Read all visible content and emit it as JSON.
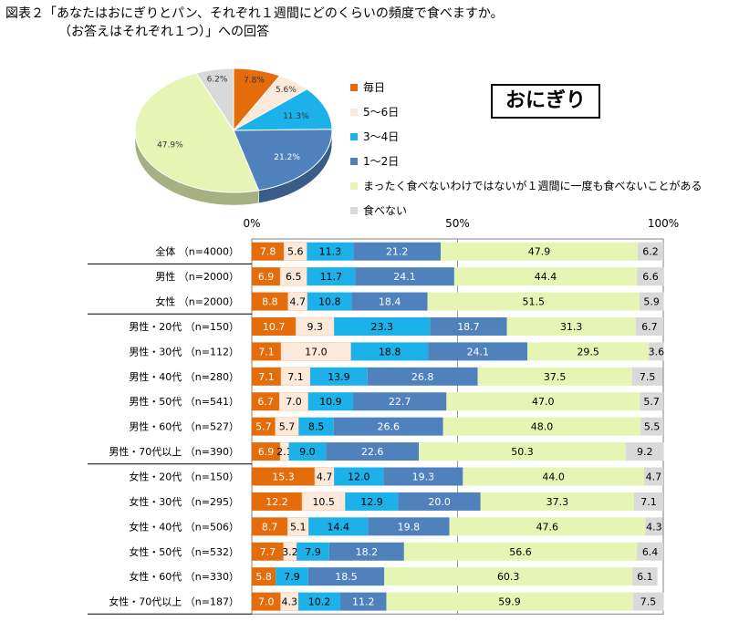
{
  "figure": {
    "title_line1": "図表２「あなたはおにぎりとパン、それぞれ１週間にどのくらいの頻度で食べますか。",
    "title_line2": "（お答えはそれぞれ１つ）」への回答",
    "badge": "おにぎり"
  },
  "colors": {
    "毎日": "#E46C0A",
    "5～6日": "#FDE9D9",
    "3～4日": "#1CB1E8",
    "1～2日": "#4F81BD",
    "まったく食べないわけではないが１週間に一度も食べないことがある": "#E6F5B4",
    "食べない": "#D9D9D9"
  },
  "chart_data": [
    {
      "type": "pie",
      "title": "",
      "labels": [
        "毎日",
        "5～6日",
        "3～4日",
        "1～2日",
        "まったく食べないわけではないが１週間に一度も食べないことがある",
        "食べない"
      ],
      "values": [
        7.8,
        5.6,
        11.3,
        21.2,
        47.9,
        6.2
      ],
      "value_labels": [
        "7.8%",
        "5.6%",
        "11.3%",
        "21.2%",
        "47.9%",
        "6.2%"
      ],
      "legend_position": "right"
    },
    {
      "type": "bar",
      "orientation": "horizontal",
      "stacked": true,
      "title": "",
      "axis_ticks": [
        "0%",
        "50%",
        "100%"
      ],
      "xlim": [
        0,
        100
      ],
      "categories": [
        "全体 （n=4000）",
        "男性 （n=2000）",
        "女性 （n=2000）",
        "男性・20代 （n=150）",
        "男性・30代 （n=112）",
        "男性・40代 （n=280）",
        "男性・50代 （n=541）",
        "男性・60代 （n=527）",
        "男性・70代以上 （n=390）",
        "女性・20代 （n=150）",
        "女性・30代 （n=295）",
        "女性・40代 （n=506）",
        "女性・50代 （n=532）",
        "女性・60代 （n=330）",
        "女性・70代以上 （n=187）"
      ],
      "group_starts": [
        0,
        1,
        3,
        9
      ],
      "series": [
        {
          "name": "毎日",
          "values": [
            7.8,
            6.9,
            8.8,
            10.7,
            7.1,
            7.1,
            6.7,
            5.7,
            6.9,
            15.3,
            12.2,
            8.7,
            7.7,
            5.8,
            7.0
          ]
        },
        {
          "name": "5～6日",
          "values": [
            5.6,
            6.5,
            4.7,
            9.3,
            17.0,
            7.1,
            7.0,
            5.7,
            2.1,
            4.7,
            10.5,
            5.1,
            3.2,
            null,
            4.3
          ]
        },
        {
          "name": "3～4日",
          "values": [
            11.3,
            11.7,
            10.8,
            23.3,
            18.8,
            13.9,
            10.9,
            8.5,
            9.0,
            12.0,
            12.9,
            14.4,
            7.9,
            7.9,
            10.2
          ]
        },
        {
          "name": "1～2日",
          "values": [
            21.2,
            24.1,
            18.4,
            18.7,
            24.1,
            26.8,
            22.7,
            26.6,
            22.6,
            19.3,
            20.0,
            19.8,
            18.2,
            18.5,
            11.2
          ]
        },
        {
          "name": "まったく食べないわけではないが１週間に一度も食べないことがある",
          "values": [
            47.9,
            44.4,
            51.5,
            31.3,
            29.5,
            37.5,
            47.0,
            48.0,
            50.3,
            44.0,
            37.3,
            47.6,
            56.6,
            60.3,
            59.9
          ]
        },
        {
          "name": "食べない",
          "values": [
            6.2,
            6.6,
            5.9,
            6.7,
            3.6,
            7.5,
            5.7,
            5.5,
            9.2,
            4.7,
            7.1,
            4.3,
            6.4,
            6.1,
            7.5
          ]
        }
      ]
    }
  ]
}
